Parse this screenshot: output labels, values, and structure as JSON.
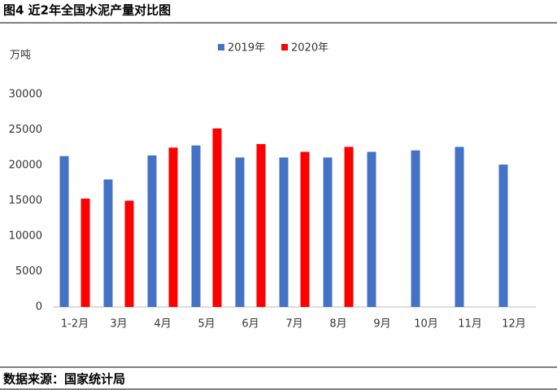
{
  "chart_data": {
    "type": "bar",
    "title": "图4 近2年全国水泥产量对比图",
    "y_label": "万吨",
    "source": "数据来源：国家统计局",
    "categories": [
      "1-2月",
      "3月",
      "4月",
      "5月",
      "6月",
      "7月",
      "8月",
      "9月",
      "10月",
      "11月",
      "12月"
    ],
    "series": [
      {
        "name": "2019年",
        "color": "#4472c4",
        "values": [
          21300,
          18000,
          21400,
          22800,
          21100,
          21100,
          21100,
          21900,
          22100,
          22600,
          20100
        ]
      },
      {
        "name": "2020年",
        "color": "#ff0000",
        "values": [
          15300,
          15000,
          22500,
          25200,
          23000,
          21900,
          22600,
          null,
          null,
          null,
          null
        ]
      }
    ],
    "ylim": [
      0,
      30000
    ],
    "yticks": [
      0,
      5000,
      10000,
      15000,
      20000,
      25000,
      30000
    ],
    "grid": false,
    "legend": "top"
  }
}
